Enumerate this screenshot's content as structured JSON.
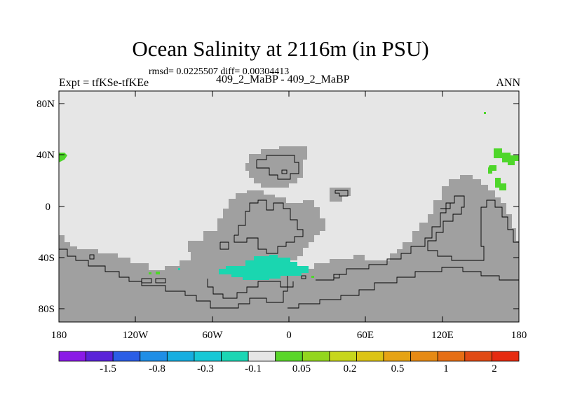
{
  "plot": {
    "title": "Ocean Salinity at 2116m (in PSU)",
    "stats": "rmsd= 0.0225507 diff= 0.00304413",
    "left_label": "Expt = tfKSe-tfKEe",
    "center_label": "409_2_MaBP - 409_2_MaBP",
    "right_label": "ANN"
  },
  "axes": {
    "lat_labels": [
      "80N",
      "40N",
      "0",
      "40S",
      "80S"
    ],
    "lon_labels": [
      "180",
      "120W",
      "60W",
      "0",
      "60E",
      "120E",
      "180"
    ]
  },
  "colorbar": {
    "colors": [
      "#8a1ae6",
      "#5a23d8",
      "#2b5ee6",
      "#1f8ee6",
      "#16aee0",
      "#17c8d6",
      "#1cd6b4",
      "#e6e6e6",
      "#5ad62a",
      "#93d61e",
      "#c7d61c",
      "#dcc414",
      "#e6a314",
      "#e68a14",
      "#e66e14",
      "#e04a14",
      "#e62b10"
    ],
    "labels": [
      "-1.5",
      "-0.8",
      "-0.3",
      "-0.1",
      "0.05",
      "0.2",
      "0.5",
      "1",
      "2"
    ]
  },
  "colors": {
    "land": "#a0a0a0",
    "ocean_neutral": "#e6e6e6",
    "anomaly_negative": "#1ad6b0",
    "anomaly_positive": "#4ed62a"
  }
}
